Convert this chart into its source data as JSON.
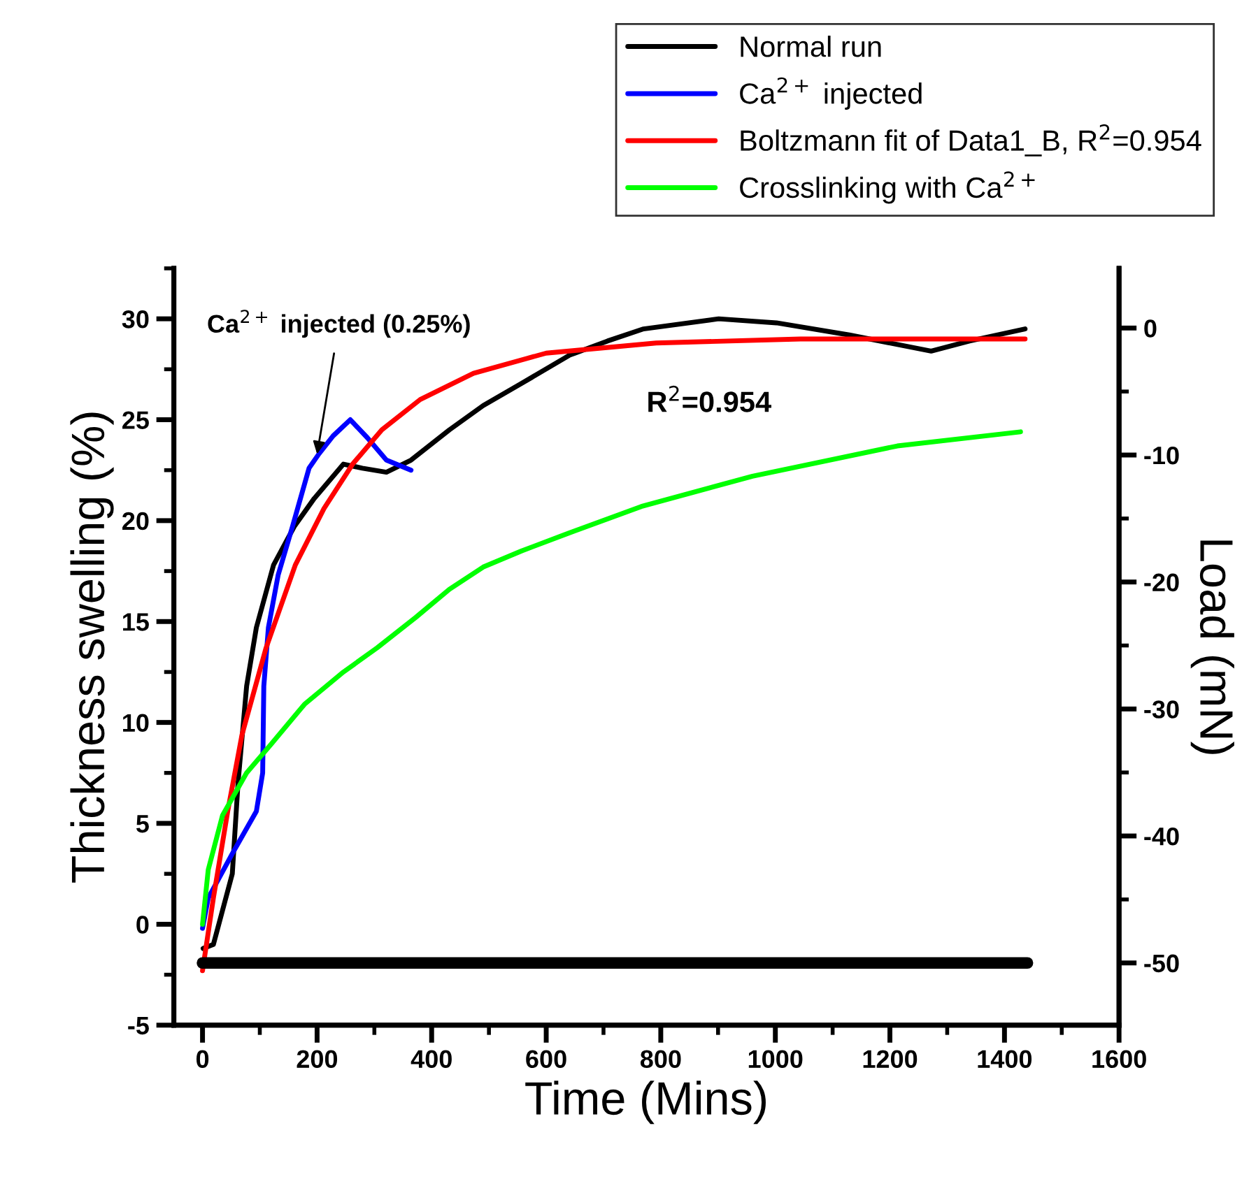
{
  "chart_data": {
    "type": "line",
    "xlabel": "Time (Mins)",
    "ylabel": "Thickness swelling (%)",
    "y2label": "Load (mN)",
    "xlim": [
      -50,
      1600
    ],
    "xticks": [
      0,
      200,
      400,
      600,
      800,
      1000,
      1200,
      1400,
      1600
    ],
    "ylim": [
      -5,
      32.5
    ],
    "yticks": [
      -5,
      0,
      5,
      10,
      15,
      20,
      25,
      30
    ],
    "y2lim": [
      -54.9,
      4.7
    ],
    "y2ticks": [
      -50,
      -40,
      -30,
      -20,
      -10,
      0
    ],
    "legend": "top right",
    "grid": false,
    "marker": "none",
    "line_style": "solid",
    "annotations": [
      {
        "text": "Ca$^{2+}$ injected (0.25%)",
        "x": 200,
        "y": 23.3
      },
      "R$^{2}$=0.954"
    ],
    "series": [
      {
        "name": "Normal run",
        "color": "#000000",
        "x": [
          1,
          19,
          52,
          62,
          77,
          94,
          124,
          160,
          195,
          246,
          279,
          321,
          364,
          431,
          490,
          557,
          641,
          707,
          770,
          901,
          1002,
          1129,
          1272,
          1339,
          1436
        ],
        "values": [
          -1.2,
          -1.0,
          2.5,
          7,
          11.8,
          14.7,
          17.8,
          19.7,
          21.1,
          22.8,
          22.6,
          22.4,
          23.0,
          24.5,
          25.7,
          26.8,
          28.2,
          28.9,
          29.5,
          30.0,
          29.8,
          29.2,
          28.4,
          28.9,
          29.5
        ]
      },
      {
        "name": "Ca$^{2+}$ injected",
        "color": "#0000ff",
        "x": [
          0,
          10,
          52,
          94,
          105,
          107,
          115,
          132,
          157,
          186,
          203,
          228,
          258,
          288,
          321,
          364
        ],
        "values": [
          -0.2,
          1.3,
          3.5,
          5.6,
          7.5,
          11.8,
          14.7,
          17.3,
          19.7,
          22.6,
          23.3,
          24.2,
          25.0,
          24.1,
          23.0,
          22.5
        ]
      },
      {
        "name": "Boltzmann fit of Data1_B, R$^{2}$=0.954",
        "color": "#ff0000",
        "x": [
          0,
          19,
          44,
          69,
          111,
          162,
          212,
          262,
          313,
          380,
          473,
          600,
          792,
          1044,
          1436
        ],
        "values": [
          -2.3,
          1.3,
          5.6,
          9.4,
          13.7,
          17.8,
          20.6,
          22.8,
          24.5,
          26.0,
          27.3,
          28.3,
          28.8,
          29.0,
          29.0
        ]
      },
      {
        "name": "Crosslinking with Ca$^{2+}$",
        "color": "#00ff00",
        "x": [
          0,
          10,
          35,
          77,
          119,
          178,
          246,
          305,
          372,
          431,
          490,
          557,
          641,
          766,
          960,
          1213,
          1428
        ],
        "values": [
          0,
          2.7,
          5.4,
          7.5,
          8.9,
          10.9,
          12.5,
          13.7,
          15.2,
          16.6,
          17.7,
          18.5,
          19.4,
          20.7,
          22.2,
          23.7,
          24.4
        ]
      },
      {
        "color": "#000000",
        "axis": "y2",
        "x": [
          0,
          1440
        ],
        "values": [
          -50,
          -50
        ]
      }
    ]
  }
}
